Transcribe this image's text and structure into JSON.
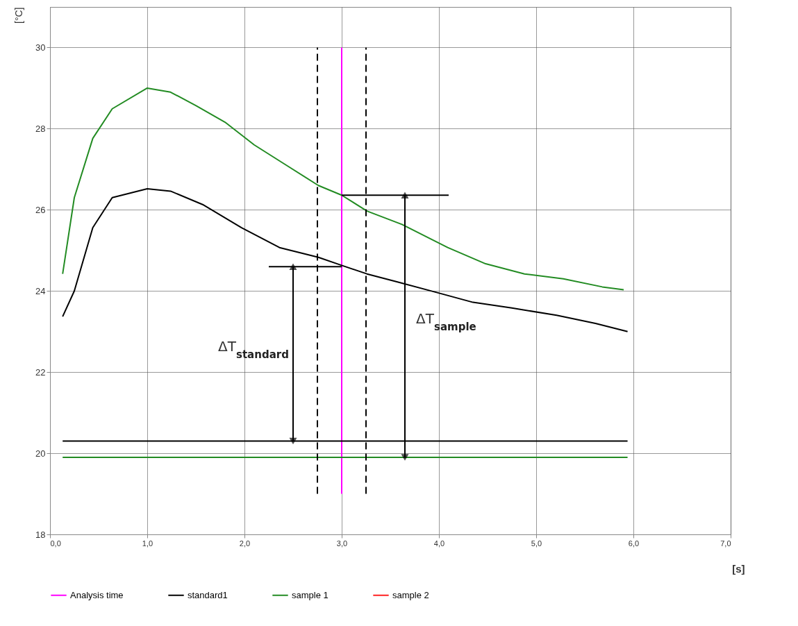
{
  "chart_data": {
    "type": "line",
    "xlabel": "[s]",
    "ylabel": "[°C]",
    "xlim": [
      0,
      7
    ],
    "ylim": [
      18,
      31
    ],
    "xticks": [
      {
        "value": 0,
        "label": "0,0"
      },
      {
        "value": 1,
        "label": "1,0"
      },
      {
        "value": 2,
        "label": "2,0"
      },
      {
        "value": 3,
        "label": "3,0"
      },
      {
        "value": 4,
        "label": "4,0"
      },
      {
        "value": 5,
        "label": "5,0"
      },
      {
        "value": 6,
        "label": "6,0"
      },
      {
        "value": 7,
        "label": "7,0"
      }
    ],
    "yticks": [
      18,
      20,
      22,
      24,
      26,
      28,
      30
    ],
    "grid": true,
    "legend": "bottom",
    "line_style": "solid",
    "series": [
      {
        "name": "Analysis time",
        "color": "#ff00ff",
        "x": [
          3,
          3
        ],
        "values": [
          19,
          30
        ]
      },
      {
        "name": "standard1",
        "color": "#000000",
        "x": [
          0.13,
          0.25,
          0.44,
          0.64,
          1.0,
          1.24,
          1.57,
          1.97,
          2.36,
          2.76,
          3.0,
          3.26,
          3.56,
          3.95,
          4.35,
          4.75,
          5.21,
          5.61,
          5.94
        ],
        "values": [
          23.37,
          24.0,
          25.56,
          26.3,
          26.52,
          26.46,
          26.13,
          25.56,
          25.07,
          24.83,
          24.63,
          24.42,
          24.23,
          23.98,
          23.72,
          23.58,
          23.4,
          23.2,
          23.0
        ]
      },
      {
        "name": "sample 1",
        "color": "#228b22",
        "x": [
          0.13,
          0.25,
          0.44,
          0.64,
          1.0,
          1.24,
          1.5,
          1.8,
          2.1,
          2.43,
          2.76,
          3.0,
          3.26,
          3.62,
          4.09,
          4.48,
          4.88,
          5.28,
          5.68,
          5.9
        ],
        "values": [
          24.42,
          26.3,
          27.76,
          28.49,
          29.0,
          28.9,
          28.57,
          28.16,
          27.6,
          27.1,
          26.6,
          26.36,
          25.97,
          25.64,
          25.07,
          24.67,
          24.42,
          24.3,
          24.1,
          24.03
        ]
      },
      {
        "name": "sample 2",
        "color": "#ff2020"
      },
      {
        "color": "#000000",
        "x": [
          0.13,
          5.94
        ],
        "values": [
          20.3,
          20.3
        ]
      },
      {
        "color": "#228b22",
        "x": [
          0.13,
          5.94
        ],
        "values": [
          19.9,
          19.9
        ]
      },
      {
        "color": "#000000",
        "x": [
          2.75,
          2.75
        ],
        "values": [
          19,
          30
        ],
        "line_style": "dashed"
      },
      {
        "color": "#000000",
        "x": [
          3.25,
          3.25
        ],
        "values": [
          19,
          30
        ],
        "line_style": "dashed"
      },
      {
        "color": "#000000",
        "x": [
          2.25,
          3.0
        ],
        "values": [
          24.6,
          24.6
        ]
      },
      {
        "color": "#000000",
        "x": [
          3.0,
          4.1
        ],
        "values": [
          26.36,
          26.36
        ]
      },
      {
        "color": "#000000",
        "x": [
          2.5,
          2.5
        ],
        "values": [
          20.3,
          24.6
        ],
        "marker": "triangle"
      },
      {
        "color": "#000000",
        "x": [
          3.65,
          3.65
        ],
        "values": [
          19.9,
          26.36
        ],
        "marker": "triangle"
      }
    ],
    "annotations": [
      "ΔT$_{standard}$",
      "ΔT$_{sample}$"
    ]
  }
}
